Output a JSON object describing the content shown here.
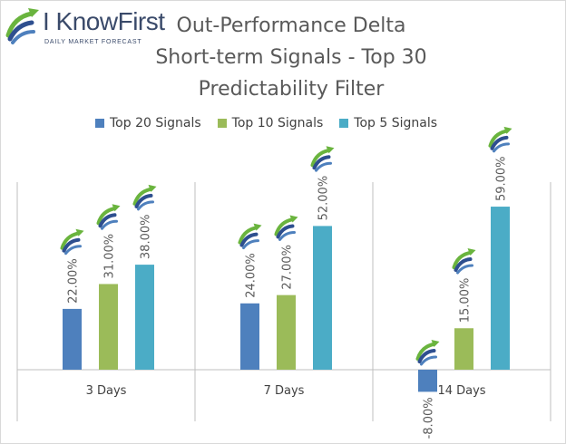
{
  "brand": {
    "name": "I KnowFirst",
    "tagline": "DAILY MARKET FORECAST"
  },
  "title_lines": [
    "Out-Performance Delta",
    "Short-term Signals - Top 30",
    "Predictability Filter"
  ],
  "colors": {
    "top20": "#4e80bd",
    "top10": "#9bbb59",
    "top5": "#4bacc6",
    "axis_line": "#bfbfbf",
    "text": "#595959",
    "logo_blue": "#2e4f8f",
    "logo_green": "#6ab43e"
  },
  "chart_data": {
    "type": "bar",
    "title": "Out-Performance Delta Short-term Signals - Top 30 Predictability Filter",
    "categories": [
      "3 Days",
      "7 Days",
      "14 Days"
    ],
    "series": [
      {
        "name": "Top 20 Signals",
        "values": [
          22.0,
          24.0,
          -8.0
        ]
      },
      {
        "name": "Top 10 Signals",
        "values": [
          31.0,
          27.0,
          15.0
        ]
      },
      {
        "name": "Top 5 Signals",
        "values": [
          38.0,
          52.0,
          59.0
        ]
      }
    ],
    "data_labels": [
      [
        "22.00%",
        "24.00%",
        "-8.00%"
      ],
      [
        "31.00%",
        "27.00%",
        "15.00%"
      ],
      [
        "38.00%",
        "52.00%",
        "59.00%"
      ]
    ],
    "value_format": "percent",
    "legend_position": "top",
    "grid": false,
    "category_separators": true,
    "data_label_rotation": "vertical",
    "ylim": [
      -8,
      59
    ]
  }
}
